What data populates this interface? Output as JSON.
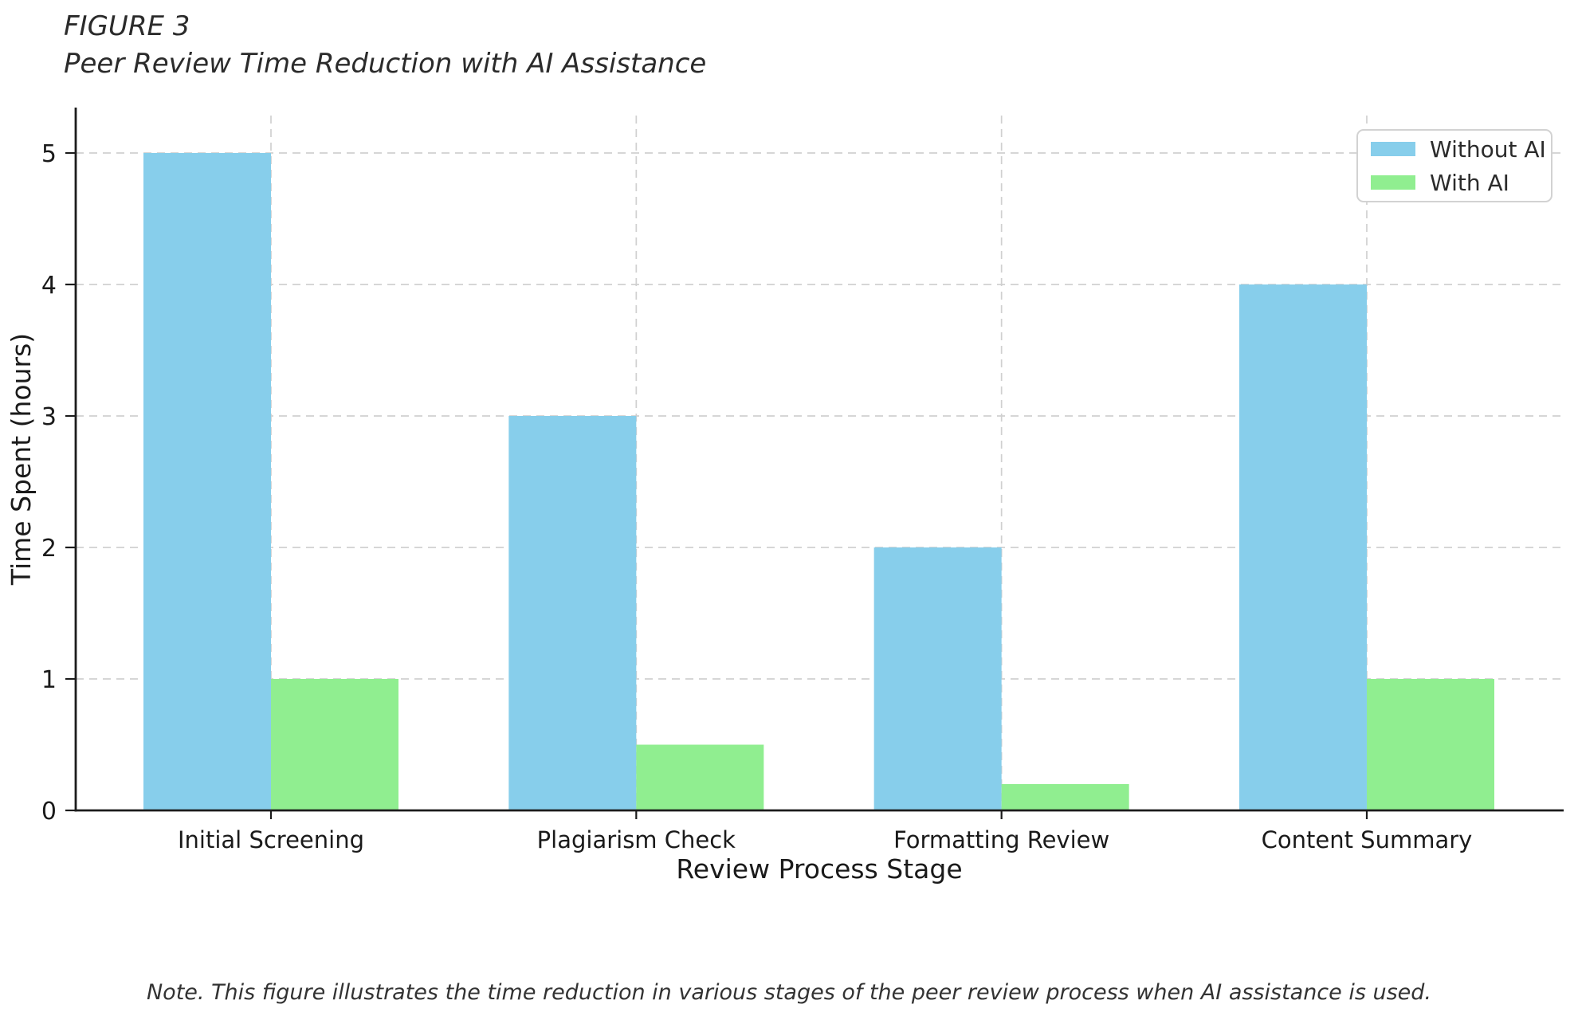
{
  "figure": {
    "label": "FIGURE 3",
    "title": "Peer Review Time Reduction with AI Assistance",
    "note": "Note. This figure illustrates the time reduction in various stages of the peer review process when AI assistance is used."
  },
  "chart_data": {
    "type": "bar",
    "categories": [
      "Initial Screening",
      "Plagiarism Check",
      "Formatting Review",
      "Content Summary"
    ],
    "series": [
      {
        "name": "Without AI",
        "color": "#87CEEB",
        "values": [
          5,
          3,
          2,
          4
        ]
      },
      {
        "name": "With AI",
        "color": "#90EE90",
        "values": [
          1,
          0.5,
          0.2,
          1
        ]
      }
    ],
    "xlabel": "Review Process Stage",
    "ylabel": "Time Spent (hours)",
    "yticks": [
      0,
      1,
      2,
      3,
      4,
      5
    ],
    "ylim": [
      0,
      5.35
    ],
    "grid": true,
    "legend_position": "upper right"
  },
  "style": {
    "axis_color": "#1c1c1c",
    "grid_color": "#d0d0d0",
    "tick_label_color": "#1a1a1a",
    "bar_colors": {
      "without_ai": "#87CEEB",
      "with_ai": "#90EE90"
    }
  }
}
